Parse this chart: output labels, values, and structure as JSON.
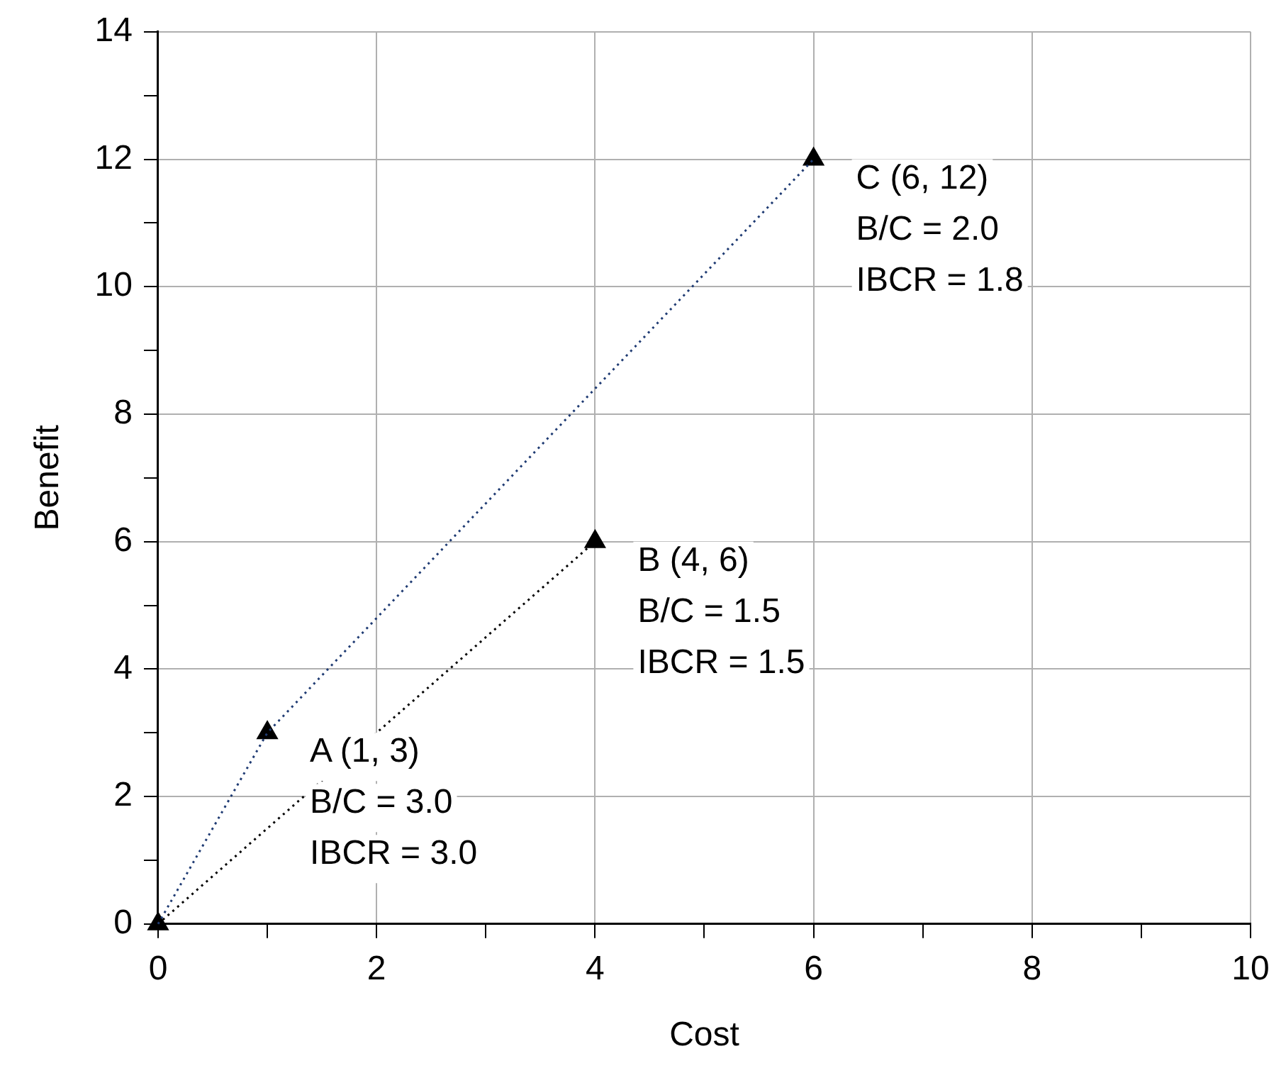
{
  "chart_data": {
    "type": "scatter",
    "xlabel": "Cost",
    "ylabel": "Benefit",
    "xlim": [
      0,
      10
    ],
    "ylim": [
      0,
      14
    ],
    "xticks": [
      0,
      {
        "value": 1,
        "label": null
      },
      2,
      {
        "value": 3,
        "label": null
      },
      4,
      {
        "value": 5,
        "label": null
      },
      6,
      {
        "value": 7,
        "label": null
      },
      8,
      {
        "value": 9,
        "label": null
      },
      10
    ],
    "yticks": [
      0,
      {
        "value": 1,
        "label": null
      },
      2,
      {
        "value": 3,
        "label": null
      },
      4,
      {
        "value": 5,
        "label": null
      },
      6,
      {
        "value": 7,
        "label": null
      },
      8,
      {
        "value": 9,
        "label": null
      },
      10,
      {
        "value": 11,
        "label": null
      },
      12,
      {
        "value": 13,
        "label": null
      },
      14
    ],
    "grid": true,
    "legend": false,
    "series": [
      {
        "type": "line",
        "color": "#1f3b73",
        "line_style": "dotted",
        "marker": "none",
        "x": [
          0,
          1,
          6
        ],
        "values": [
          0,
          3,
          12
        ]
      },
      {
        "type": "line",
        "color": "#000000",
        "line_style": "dotted",
        "marker": "none",
        "x": [
          0,
          4
        ],
        "values": [
          0,
          6
        ]
      },
      {
        "color": "#000000",
        "marker": "triangle",
        "x": [
          0,
          1,
          4,
          6
        ],
        "values": [
          0,
          3,
          6,
          12
        ]
      }
    ],
    "annotations": [
      {
        "text": "A (1, 3)\nB/C = 3.0\nIBCR = 3.0",
        "x": 1,
        "y": 3
      },
      {
        "text": "B (4, 6)\nB/C = 1.5\nIBCR = 1.5",
        "x": 4,
        "y": 6
      },
      {
        "text": "C (6, 12)\nB/C = 2.0\nIBCR = 1.8",
        "x": 6,
        "y": 12
      }
    ]
  }
}
